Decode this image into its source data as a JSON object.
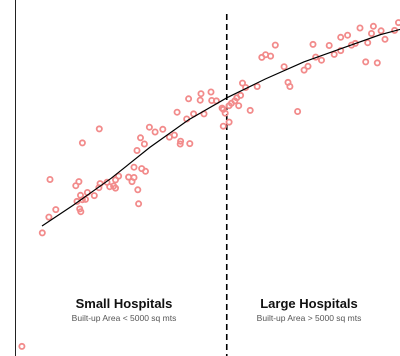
{
  "chart_data": {
    "type": "scatter",
    "title": "",
    "xlabel": "",
    "ylabel": "",
    "xlim": [
      0,
      100
    ],
    "ylim": [
      0,
      100
    ],
    "grid": false,
    "legend": "none",
    "colors": {
      "point": "#f28b8b",
      "trend": "#000000",
      "divider": "#000000",
      "axis": "#222222"
    },
    "divider_x": 55,
    "groups": [
      {
        "name": "Small Hospitals",
        "subtitle": "Built-up Area < 5000 sq mts"
      },
      {
        "name": "Large Hospitals",
        "subtitle": "Built-up Area > 5000 sq mts"
      }
    ],
    "series": [
      {
        "points": [
          [
            1.8,
            2.8
          ],
          [
            7.1,
            36.0
          ],
          [
            9.1,
            51.6
          ],
          [
            8.8,
            40.6
          ],
          [
            10.6,
            42.8
          ],
          [
            15.8,
            49.8
          ],
          [
            16.6,
            51.0
          ],
          [
            16.1,
            45.2
          ],
          [
            17.5,
            45.7
          ],
          [
            16.8,
            43.0
          ],
          [
            17.1,
            42.2
          ],
          [
            18.8,
            47.8
          ],
          [
            18.3,
            45.8
          ],
          [
            17.0,
            47.0
          ],
          [
            20.6,
            46.9
          ],
          [
            21.8,
            49.2
          ],
          [
            22.1,
            50.4
          ],
          [
            23.9,
            50.8
          ],
          [
            24.6,
            49.5
          ],
          [
            25.6,
            49.7
          ],
          [
            26.1,
            51.5
          ],
          [
            26.1,
            49.1
          ],
          [
            26.9,
            52.6
          ],
          [
            30.4,
            51.0
          ],
          [
            30.9,
            55.2
          ],
          [
            30.9,
            52.2
          ],
          [
            31.9,
            48.6
          ],
          [
            32.1,
            44.5
          ],
          [
            32.9,
            54.8
          ],
          [
            33.9,
            54.0
          ],
          [
            31.7,
            60.1
          ],
          [
            32.6,
            63.8
          ],
          [
            33.6,
            62.0
          ],
          [
            34.9,
            66.9
          ],
          [
            36.4,
            65.5
          ],
          [
            38.4,
            66.3
          ],
          [
            40.1,
            64.0
          ],
          [
            41.4,
            64.6
          ],
          [
            42.1,
            71.3
          ],
          [
            42.9,
            62.0
          ],
          [
            44.6,
            69.3
          ],
          [
            45.4,
            62.1
          ],
          [
            46.4,
            70.8
          ],
          [
            48.1,
            74.8
          ],
          [
            51.1,
            74.7
          ],
          [
            49.1,
            70.8
          ],
          [
            54.1,
            67.2
          ],
          [
            55.6,
            68.4
          ],
          [
            54.6,
            71.0
          ],
          [
            55.6,
            73.2
          ],
          [
            53.8,
            72.5
          ],
          [
            57.6,
            75.5
          ],
          [
            58.6,
            76.2
          ],
          [
            59.1,
            79.8
          ],
          [
            57.1,
            74.6
          ],
          [
            58.1,
            73.2
          ],
          [
            59.9,
            78.5
          ],
          [
            61.1,
            71.8
          ],
          [
            62.9,
            78.8
          ],
          [
            64.1,
            87.3
          ],
          [
            65.1,
            88.1
          ],
          [
            66.4,
            87.7
          ],
          [
            67.6,
            90.9
          ],
          [
            69.9,
            84.6
          ],
          [
            70.9,
            80.0
          ],
          [
            71.4,
            78.8
          ],
          [
            73.4,
            71.5
          ],
          [
            75.1,
            83.6
          ],
          [
            76.1,
            84.7
          ],
          [
            78.1,
            87.4
          ],
          [
            77.4,
            91.1
          ],
          [
            79.6,
            86.5
          ],
          [
            81.6,
            90.8
          ],
          [
            82.9,
            88.2
          ],
          [
            84.6,
            89.3
          ],
          [
            84.6,
            93.2
          ],
          [
            86.4,
            93.8
          ],
          [
            87.4,
            90.9
          ],
          [
            88.4,
            91.4
          ],
          [
            89.6,
            95.9
          ],
          [
            91.6,
            91.6
          ],
          [
            92.6,
            94.3
          ],
          [
            93.1,
            96.4
          ],
          [
            91.1,
            86.0
          ],
          [
            94.1,
            85.7
          ],
          [
            95.1,
            95.1
          ],
          [
            96.1,
            92.6
          ],
          [
            98.6,
            95.2
          ],
          [
            99.6,
            97.5
          ],
          [
            17.5,
            62.3
          ],
          [
            21.9,
            66.4
          ],
          [
            29.5,
            52.3
          ],
          [
            43.0,
            62.8
          ],
          [
            45.1,
            75.2
          ],
          [
            48.3,
            76.7
          ],
          [
            50.9,
            77.2
          ],
          [
            52.3,
            74.6
          ],
          [
            54.1,
            72.1
          ],
          [
            56.2,
            73.9
          ]
        ]
      }
    ],
    "trend": {
      "x": [
        7,
        15,
        25,
        35,
        45,
        55,
        65,
        75,
        85,
        95,
        100
      ],
      "y": [
        38.0,
        44.0,
        52.0,
        61.0,
        69.0,
        75.5,
        81.0,
        86.0,
        90.0,
        94.0,
        95.5
      ]
    }
  }
}
